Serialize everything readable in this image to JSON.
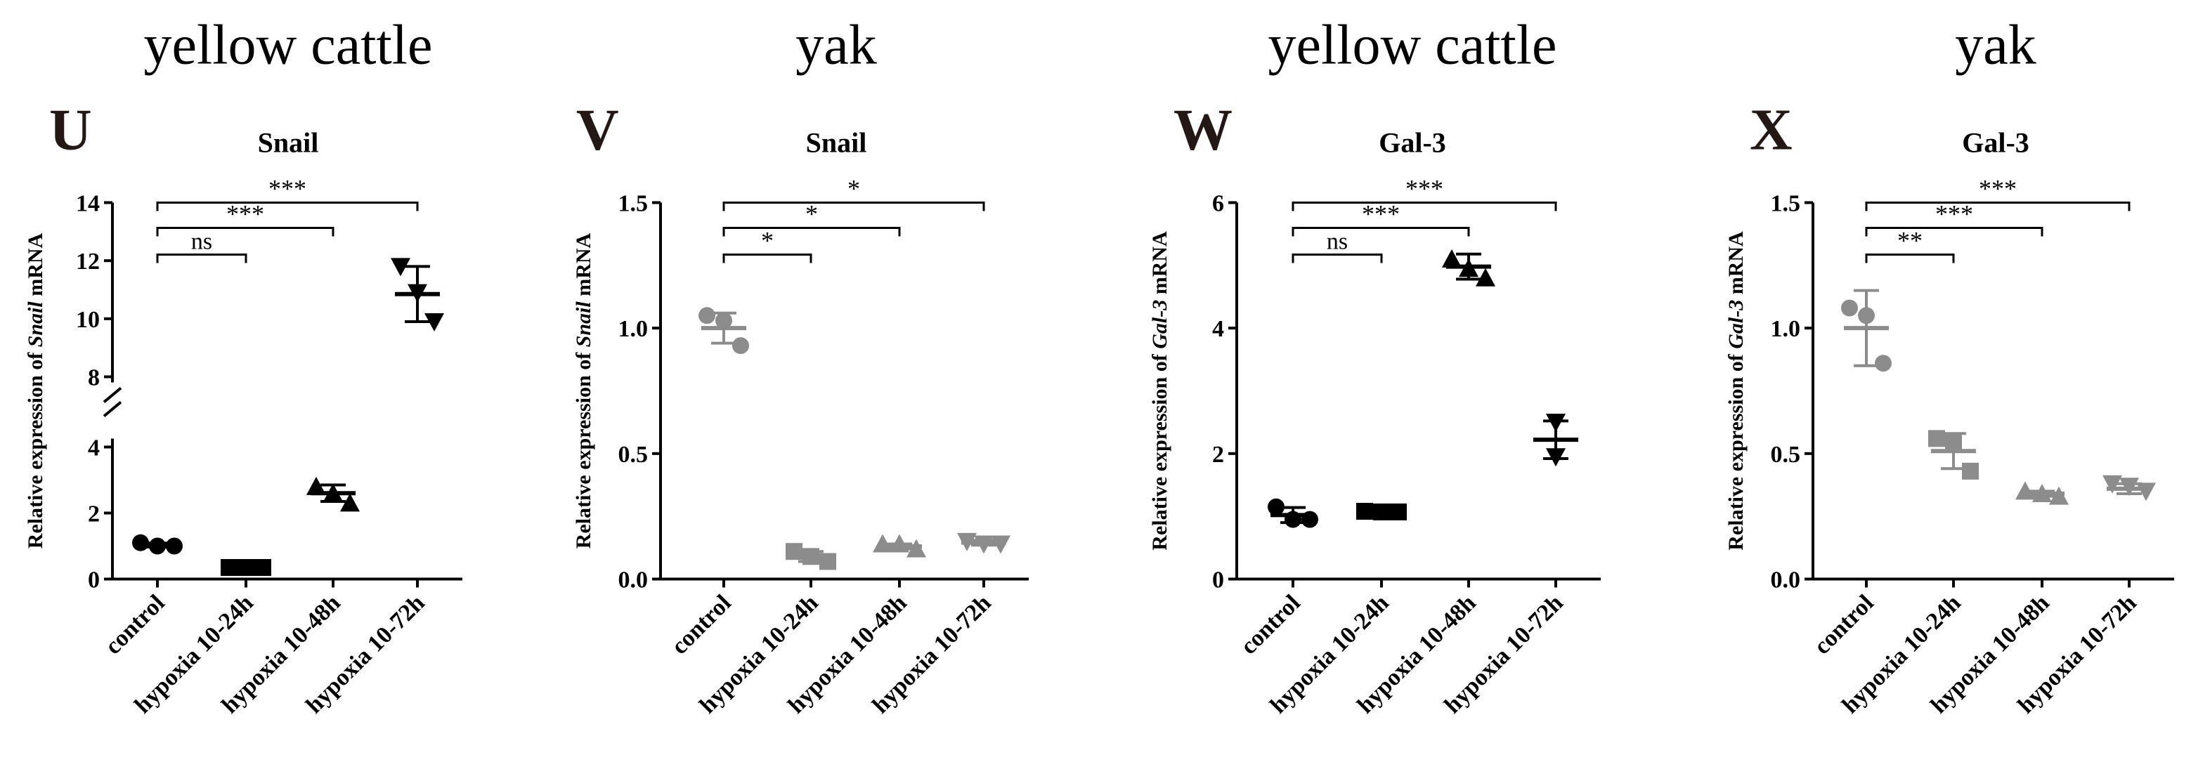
{
  "chart_data": [
    {
      "type": "scatter",
      "letter": "U",
      "group_title": "yellow cattle",
      "title": "Snail",
      "ylabel_prefix": "Relative expression of ",
      "ylabel_gene": "Snail",
      "ylabel_suffix": " mRNA",
      "categories": [
        "control",
        "hypoxia 10-24h",
        "hypoxia 10-48h",
        "hypoxia 10-72h"
      ],
      "ylim": [
        0,
        14
      ],
      "axis_break": [
        4,
        8
      ],
      "yticks": [
        0,
        2,
        4,
        8,
        10,
        12,
        14
      ],
      "color": "#000000",
      "markers": [
        "circle",
        "square",
        "triangle-up",
        "triangle-down"
      ],
      "series": [
        {
          "name": "control",
          "points": [
            1.1,
            1.0,
            1.0
          ],
          "mean": 1.03,
          "sd": 0.06
        },
        {
          "name": "hypoxia 10-24h",
          "points": [
            0.35,
            0.35,
            0.35
          ],
          "mean": 0.35,
          "sd": 0.02
        },
        {
          "name": "hypoxia 10-48h",
          "points": [
            2.8,
            2.6,
            2.3
          ],
          "mean": 2.6,
          "sd": 0.25
        },
        {
          "name": "hypoxia 10-72h",
          "points": [
            11.8,
            10.9,
            9.9
          ],
          "mean": 10.85,
          "sd": 0.95
        }
      ],
      "comparisons": [
        {
          "from": "control",
          "to": "hypoxia 10-24h",
          "label": "ns"
        },
        {
          "from": "control",
          "to": "hypoxia 10-48h",
          "label": "***"
        },
        {
          "from": "control",
          "to": "hypoxia 10-72h",
          "label": "***"
        }
      ]
    },
    {
      "type": "scatter",
      "letter": "V",
      "group_title": "yak",
      "title": "Snail",
      "ylabel_prefix": "Relative expression of ",
      "ylabel_gene": "Snail",
      "ylabel_suffix": " mRNA",
      "categories": [
        "control",
        "hypoxia 10-24h",
        "hypoxia 10-48h",
        "hypoxia 10-72h"
      ],
      "ylim": [
        0,
        1.5
      ],
      "yticks": [
        "0.0",
        "0.5",
        "1.0",
        "1.5"
      ],
      "color": "#8c8c8c",
      "markers": [
        "circle",
        "square",
        "triangle-up",
        "triangle-down"
      ],
      "series": [
        {
          "name": "control",
          "points": [
            1.05,
            1.03,
            0.93
          ],
          "mean": 1.0,
          "sd": 0.06
        },
        {
          "name": "hypoxia 10-24h",
          "points": [
            0.11,
            0.09,
            0.07
          ],
          "mean": 0.09,
          "sd": 0.02
        },
        {
          "name": "hypoxia 10-48h",
          "points": [
            0.14,
            0.14,
            0.12
          ],
          "mean": 0.13,
          "sd": 0.01
        },
        {
          "name": "hypoxia 10-72h",
          "points": [
            0.15,
            0.14,
            0.14
          ],
          "mean": 0.145,
          "sd": 0.01
        }
      ],
      "comparisons": [
        {
          "from": "control",
          "to": "hypoxia 10-24h",
          "label": "*"
        },
        {
          "from": "control",
          "to": "hypoxia 10-48h",
          "label": "*"
        },
        {
          "from": "control",
          "to": "hypoxia 10-72h",
          "label": "*"
        }
      ]
    },
    {
      "type": "scatter",
      "letter": "W",
      "group_title": "yellow cattle",
      "title": "Gal-3",
      "ylabel_prefix": "Relative expression of ",
      "ylabel_gene": "Gal-3",
      "ylabel_suffix": " mRNA",
      "categories": [
        "control",
        "hypoxia 10-24h",
        "hypoxia 10-48h",
        "hypoxia 10-72h"
      ],
      "ylim": [
        0,
        6
      ],
      "yticks": [
        "0",
        "2",
        "4",
        "6"
      ],
      "color": "#000000",
      "markers": [
        "circle",
        "square",
        "triangle-up",
        "triangle-down"
      ],
      "series": [
        {
          "name": "control",
          "points": [
            1.15,
            0.95,
            0.95
          ],
          "mean": 1.02,
          "sd": 0.12
        },
        {
          "name": "hypoxia 10-24h",
          "points": [
            1.08,
            1.07,
            1.07
          ],
          "mean": 1.07,
          "sd": 0.02
        },
        {
          "name": "hypoxia 10-48h",
          "points": [
            5.1,
            4.95,
            4.8
          ],
          "mean": 4.98,
          "sd": 0.2
        },
        {
          "name": "hypoxia 10-72h",
          "points": [
            2.5,
            1.95
          ],
          "mean": 2.22,
          "sd": 0.3
        }
      ],
      "comparisons": [
        {
          "from": "control",
          "to": "hypoxia 10-24h",
          "label": "ns"
        },
        {
          "from": "control",
          "to": "hypoxia 10-48h",
          "label": "***"
        },
        {
          "from": "control",
          "to": "hypoxia 10-72h",
          "label": "***"
        }
      ]
    },
    {
      "type": "scatter",
      "letter": "X",
      "group_title": "yak",
      "title": "Gal-3",
      "ylabel_prefix": "Relative expression of ",
      "ylabel_gene": "Gal-3",
      "ylabel_suffix": " mRNA",
      "categories": [
        "control",
        "hypoxia 10-24h",
        "hypoxia 10-48h",
        "hypoxia 10-72h"
      ],
      "ylim": [
        0,
        1.5
      ],
      "yticks": [
        "0.0",
        "0.5",
        "1.0",
        "1.5"
      ],
      "color": "#8c8c8c",
      "markers": [
        "circle",
        "square",
        "triangle-up",
        "triangle-down"
      ],
      "series": [
        {
          "name": "control",
          "points": [
            1.08,
            1.05,
            0.86
          ],
          "mean": 1.0,
          "sd": 0.15
        },
        {
          "name": "hypoxia 10-24h",
          "points": [
            0.56,
            0.55,
            0.43
          ],
          "mean": 0.51,
          "sd": 0.07
        },
        {
          "name": "hypoxia 10-48h",
          "points": [
            0.35,
            0.34,
            0.33
          ],
          "mean": 0.34,
          "sd": 0.01
        },
        {
          "name": "hypoxia 10-72h",
          "points": [
            0.38,
            0.37,
            0.35
          ],
          "mean": 0.36,
          "sd": 0.02
        }
      ],
      "comparisons": [
        {
          "from": "control",
          "to": "hypoxia 10-24h",
          "label": "**"
        },
        {
          "from": "control",
          "to": "hypoxia 10-48h",
          "label": "***"
        },
        {
          "from": "control",
          "to": "hypoxia 10-72h",
          "label": "***"
        }
      ]
    }
  ]
}
